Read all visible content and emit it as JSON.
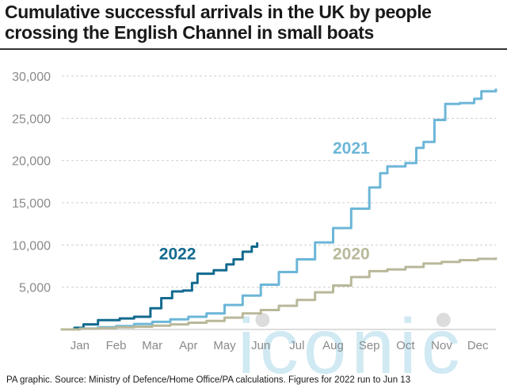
{
  "title": "Cumulative successful arrivals in the UK by people crossing the English Channel in small boats",
  "source": "PA graphic. Source: Ministry of Defence/Home Office/PA calculations. Figures for 2022 run to Jun 13",
  "watermark": "iconic",
  "colors": {
    "2022": "#136a8f",
    "2021": "#6cb6d8",
    "2020": "#b9b89a",
    "grid": "#cfcfcf",
    "axis_text": "#8a8a8a"
  },
  "chart_data": {
    "type": "line",
    "title": "Cumulative successful arrivals in the UK by people crossing the English Channel in small boats",
    "xlabel": "",
    "ylabel": "",
    "x_unit": "month",
    "xlim": [
      0,
      12
    ],
    "ylim": [
      0,
      30000
    ],
    "yticks": [
      5000,
      10000,
      15000,
      20000,
      25000,
      30000
    ],
    "ytick_labels": [
      "5,000",
      "10,000",
      "15,000",
      "20,000",
      "25,000",
      "30,000"
    ],
    "categories": [
      "Jan",
      "Feb",
      "Mar",
      "Apr",
      "May",
      "Jun",
      "Jul",
      "Aug",
      "Sep",
      "Oct",
      "Nov",
      "Dec"
    ],
    "grid": true,
    "legend": "inline labels",
    "series": [
      {
        "name": "2022",
        "points": [
          [
            0,
            0
          ],
          [
            0.35,
            200
          ],
          [
            0.6,
            600
          ],
          [
            1.0,
            1100
          ],
          [
            1.6,
            1300
          ],
          [
            2.0,
            1500
          ],
          [
            2.45,
            2500
          ],
          [
            2.75,
            3700
          ],
          [
            3.05,
            4500
          ],
          [
            3.35,
            4600
          ],
          [
            3.6,
            5500
          ],
          [
            3.75,
            6600
          ],
          [
            4.2,
            7000
          ],
          [
            4.55,
            7700
          ],
          [
            4.75,
            8300
          ],
          [
            5.0,
            9200
          ],
          [
            5.25,
            9800
          ],
          [
            5.4,
            10200
          ]
        ]
      },
      {
        "name": "2021",
        "points": [
          [
            0,
            0
          ],
          [
            0.5,
            100
          ],
          [
            1.0,
            250
          ],
          [
            1.5,
            400
          ],
          [
            2.0,
            650
          ],
          [
            2.5,
            900
          ],
          [
            3.0,
            1200
          ],
          [
            3.5,
            1500
          ],
          [
            4.0,
            1900
          ],
          [
            4.5,
            2900
          ],
          [
            5.0,
            4000
          ],
          [
            5.5,
            5300
          ],
          [
            6.0,
            6800
          ],
          [
            6.5,
            8300
          ],
          [
            7.0,
            10300
          ],
          [
            7.5,
            12000
          ],
          [
            8.0,
            14300
          ],
          [
            8.5,
            16800
          ],
          [
            8.8,
            18500
          ],
          [
            9.0,
            19300
          ],
          [
            9.5,
            19700
          ],
          [
            9.8,
            21500
          ],
          [
            10.0,
            22200
          ],
          [
            10.3,
            24800
          ],
          [
            10.6,
            26700
          ],
          [
            11.0,
            26800
          ],
          [
            11.4,
            27300
          ],
          [
            11.6,
            28200
          ],
          [
            12.0,
            28400
          ]
        ]
      },
      {
        "name": "2020",
        "points": [
          [
            0,
            0
          ],
          [
            0.5,
            80
          ],
          [
            1.0,
            150
          ],
          [
            1.5,
            250
          ],
          [
            2.0,
            330
          ],
          [
            2.5,
            450
          ],
          [
            3.0,
            600
          ],
          [
            3.5,
            800
          ],
          [
            4.0,
            1000
          ],
          [
            4.5,
            1400
          ],
          [
            5.0,
            1900
          ],
          [
            5.5,
            2300
          ],
          [
            6.0,
            2800
          ],
          [
            6.5,
            3500
          ],
          [
            7.0,
            4400
          ],
          [
            7.5,
            5200
          ],
          [
            8.0,
            6200
          ],
          [
            8.5,
            6900
          ],
          [
            9.0,
            7100
          ],
          [
            9.5,
            7400
          ],
          [
            10.0,
            7800
          ],
          [
            10.5,
            8000
          ],
          [
            11.0,
            8200
          ],
          [
            11.5,
            8350
          ],
          [
            12.0,
            8400
          ]
        ]
      }
    ],
    "series_labels": [
      {
        "name": "2022",
        "text": "2022",
        "x": 3.2,
        "y": 8300
      },
      {
        "name": "2021",
        "text": "2021",
        "x": 8.0,
        "y": 20800
      },
      {
        "name": "2020",
        "text": "2020",
        "x": 8.0,
        "y": 8300
      }
    ]
  }
}
